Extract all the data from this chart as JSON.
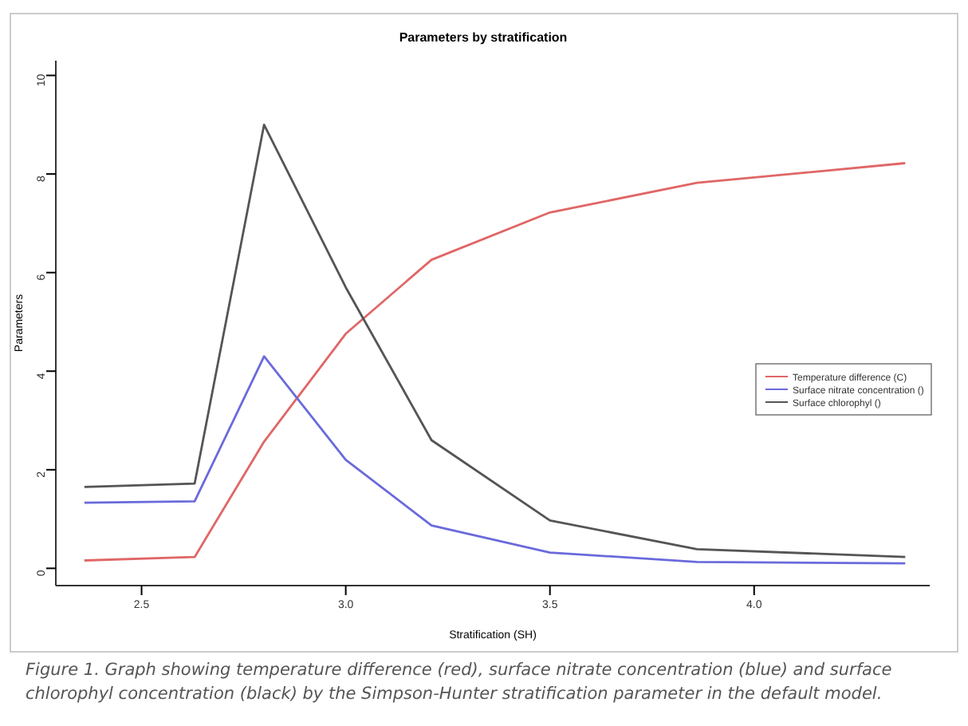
{
  "chart_data": {
    "type": "line",
    "title": "Parameters by stratification",
    "xlabel": "Stratification (SH)",
    "ylabel": "Parameters",
    "x": [
      2.36,
      2.63,
      2.8,
      3.0,
      3.21,
      3.5,
      3.86,
      4.37
    ],
    "series": [
      {
        "name": "Temperature difference (C)",
        "color": "#e06666",
        "values": [
          0.16,
          0.23,
          2.57,
          4.76,
          6.26,
          7.22,
          7.82,
          8.22
        ]
      },
      {
        "name": "Surface nitrate concentration ()",
        "color": "#6a6adc",
        "values": [
          1.33,
          1.36,
          4.3,
          2.2,
          0.87,
          0.32,
          0.13,
          0.1
        ]
      },
      {
        "name": "Surface chlorophyl ()",
        "color": "#555555",
        "values": [
          1.65,
          1.72,
          9.0,
          5.7,
          2.6,
          0.97,
          0.39,
          0.23
        ]
      }
    ],
    "xlim": [
      2.29,
      4.43
    ],
    "xticks": [
      {
        "value": 2.5,
        "label": "2.5"
      },
      {
        "value": 3,
        "label": "3.0"
      },
      {
        "value": 3.5,
        "label": "3.5"
      },
      {
        "value": 4,
        "label": "4.0"
      }
    ],
    "ylim": [
      -0.35,
      10.3
    ],
    "yticks": [
      0,
      2,
      4,
      6,
      8,
      10
    ],
    "grid": false,
    "legend": "right",
    "annotations": [
      "Figure 1. Graph showing temperature difference (red), surface nitrate concentration (blue) and surface chlorophyl concentration (black) by the Simpson-Hunter stratification parameter in the default model."
    ]
  }
}
